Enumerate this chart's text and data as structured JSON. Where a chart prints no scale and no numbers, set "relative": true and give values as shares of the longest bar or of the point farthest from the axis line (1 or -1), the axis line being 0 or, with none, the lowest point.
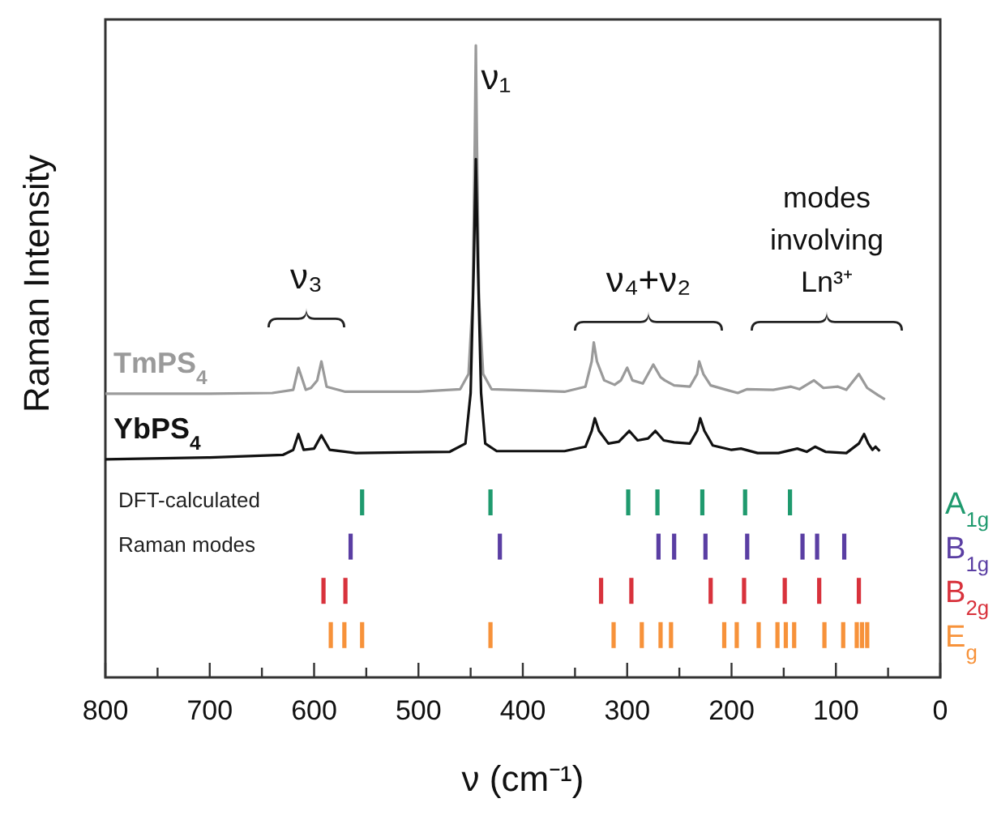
{
  "chart_data": [
    {
      "type": "line",
      "relative": true,
      "xlabel": "ν (cm⁻¹)",
      "ylabel": "Raman Intensity",
      "xlim": [
        800,
        0
      ],
      "xticks": [
        800,
        {
          "value": 750,
          "label": null
        },
        700,
        {
          "value": 650,
          "label": null
        },
        600,
        {
          "value": 550,
          "label": null
        },
        500,
        {
          "value": 450,
          "label": null
        },
        400,
        {
          "value": 350,
          "label": null
        },
        300,
        {
          "value": 250,
          "label": null
        },
        200,
        {
          "value": 150,
          "label": null
        },
        100,
        {
          "value": 50,
          "label": null
        },
        0
      ],
      "grid": false,
      "marker": "none",
      "line_style": "solid",
      "annotations": [
        "ν₁",
        "ν₃",
        "ν₄+ν₂",
        "modes\ninvolving\nLn³⁺"
      ],
      "series": [
        {
          "name": "TmPS$_{4}$",
          "type": "line",
          "color": "#9a9a9a",
          "x": [
            800,
            700,
            640,
            620,
            615,
            608,
            603,
            597,
            593,
            588,
            570,
            500,
            460,
            452,
            448,
            446,
            445,
            444,
            442,
            438,
            430,
            360,
            340,
            334,
            332,
            329,
            322,
            312,
            306,
            300,
            295,
            285,
            275,
            268,
            264,
            255,
            240,
            233,
            231,
            227,
            220,
            205,
            194,
            185,
            160,
            143,
            135,
            121,
            112,
            98,
            90,
            78,
            70,
            60,
            53
          ],
          "values": [
            0.449,
            0.449,
            0.45,
            0.455,
            0.49,
            0.455,
            0.458,
            0.47,
            0.5,
            0.46,
            0.452,
            0.452,
            0.456,
            0.48,
            0.6,
            0.85,
            1.0,
            0.85,
            0.6,
            0.48,
            0.456,
            0.452,
            0.46,
            0.5,
            0.53,
            0.5,
            0.47,
            0.463,
            0.47,
            0.49,
            0.47,
            0.465,
            0.495,
            0.475,
            0.47,
            0.462,
            0.46,
            0.48,
            0.5,
            0.48,
            0.462,
            0.455,
            0.45,
            0.456,
            0.455,
            0.46,
            0.456,
            0.47,
            0.458,
            0.46,
            0.455,
            0.48,
            0.458,
            0.447,
            0.44
          ]
        },
        {
          "name": "YbPS$_{4}$",
          "type": "line",
          "color": "#111111",
          "x": [
            800,
            700,
            630,
            620,
            615,
            610,
            600,
            593,
            585,
            560,
            470,
            455,
            450,
            447,
            445,
            443,
            440,
            436,
            425,
            360,
            340,
            334,
            331,
            327,
            318,
            308,
            298,
            290,
            280,
            273,
            265,
            255,
            240,
            233,
            230,
            226,
            218,
            200,
            191,
            175,
            155,
            137,
            128,
            120,
            110,
            90,
            78,
            73,
            69,
            65,
            62,
            58
          ],
          "values": [
            0.345,
            0.348,
            0.352,
            0.36,
            0.385,
            0.36,
            0.362,
            0.383,
            0.36,
            0.355,
            0.357,
            0.37,
            0.45,
            0.65,
            0.82,
            0.65,
            0.45,
            0.37,
            0.358,
            0.358,
            0.365,
            0.39,
            0.41,
            0.39,
            0.37,
            0.373,
            0.39,
            0.375,
            0.378,
            0.39,
            0.375,
            0.372,
            0.37,
            0.39,
            0.41,
            0.39,
            0.367,
            0.36,
            0.362,
            0.355,
            0.355,
            0.362,
            0.357,
            0.365,
            0.357,
            0.355,
            0.37,
            0.385,
            0.37,
            0.36,
            0.365,
            0.358
          ]
        }
      ]
    },
    {
      "type": "bar",
      "relative": true,
      "xlim": [
        800,
        0
      ],
      "tick_labels": false,
      "legend": "right",
      "annotations": [
        "DFT-calculated\nRaman modes"
      ],
      "series": [
        {
          "name": "A$_{1g}$",
          "color": "#1f9a6e",
          "x": [
            554,
            431,
            299,
            271,
            228,
            187,
            144
          ],
          "values": [
            1,
            1,
            1,
            1,
            1,
            1,
            1
          ]
        }
      ]
    },
    {
      "type": "bar",
      "relative": true,
      "xlim": [
        800,
        0
      ],
      "tick_labels": false,
      "legend": "right",
      "series": [
        {
          "name": "B$_{1g}$",
          "color": "#5a3ea3",
          "x": [
            565,
            422,
            270,
            255,
            225,
            185,
            132,
            118,
            92
          ],
          "values": [
            1,
            1,
            1,
            1,
            1,
            1,
            1,
            1,
            1
          ]
        }
      ]
    },
    {
      "type": "bar",
      "relative": true,
      "xlim": [
        800,
        0
      ],
      "tick_labels": false,
      "legend": "right",
      "series": [
        {
          "name": "B$_{2g}$",
          "color": "#d8323c",
          "x": [
            591,
            570,
            325,
            296,
            220,
            188,
            149,
            116,
            78
          ],
          "values": [
            1,
            1,
            1,
            1,
            1,
            1,
            1,
            1,
            1
          ]
        }
      ]
    },
    {
      "type": "bar",
      "relative": true,
      "xlim": [
        800,
        0
      ],
      "tick_labels": false,
      "legend": "right",
      "series": [
        {
          "name": "E$_{g}$",
          "color": "#f7923a",
          "x": [
            584,
            571,
            554,
            431,
            313,
            286,
            268,
            258,
            207,
            195,
            174,
            156,
            148,
            140,
            111,
            93,
            80,
            75,
            70
          ],
          "values": [
            1,
            1,
            1,
            1,
            1,
            1,
            1,
            1,
            1,
            1,
            1,
            1,
            1,
            1,
            1,
            1,
            1,
            1,
            1
          ]
        }
      ]
    }
  ]
}
